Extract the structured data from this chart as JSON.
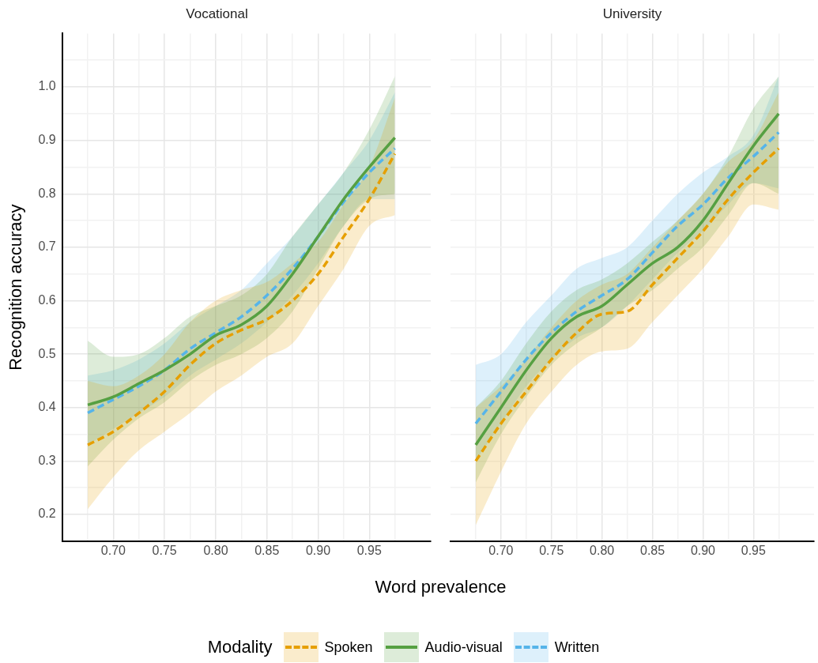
{
  "chart_data": [
    {
      "type": "line",
      "title": "Vocational",
      "xlabel": "Word prevalence",
      "ylabel": "Recognition accuracy",
      "legend_title": "Modality",
      "legend": "bottom",
      "grid": true,
      "marker": "none",
      "x": [
        0.675,
        0.7,
        0.725,
        0.75,
        0.775,
        0.8,
        0.825,
        0.85,
        0.875,
        0.9,
        0.925,
        0.95,
        0.975
      ],
      "xlim": [
        0.65,
        1.01
      ],
      "xticks": [
        {
          "value": 0.675,
          "label": null
        },
        {
          "value": 0.7,
          "label": "0.70"
        },
        {
          "value": 0.725,
          "label": null
        },
        {
          "value": 0.75,
          "label": "0.75"
        },
        {
          "value": 0.775,
          "label": null
        },
        {
          "value": 0.8,
          "label": "0.80"
        },
        {
          "value": 0.825,
          "label": null
        },
        {
          "value": 0.85,
          "label": "0.85"
        },
        {
          "value": 0.875,
          "label": null
        },
        {
          "value": 0.9,
          "label": "0.90"
        },
        {
          "value": 0.925,
          "label": null
        },
        {
          "value": 0.95,
          "label": "0.95"
        },
        {
          "value": 0.975,
          "label": null
        }
      ],
      "ylim": [
        0.15,
        1.1
      ],
      "yticks": [
        {
          "value": 0.15,
          "label": null
        },
        {
          "value": 0.2,
          "label": "0.2"
        },
        {
          "value": 0.25,
          "label": null
        },
        {
          "value": 0.3,
          "label": "0.3"
        },
        {
          "value": 0.35,
          "label": null
        },
        {
          "value": 0.4,
          "label": "0.4"
        },
        {
          "value": 0.45,
          "label": null
        },
        {
          "value": 0.5,
          "label": "0.5"
        },
        {
          "value": 0.55,
          "label": null
        },
        {
          "value": 0.6,
          "label": "0.6"
        },
        {
          "value": 0.65,
          "label": null
        },
        {
          "value": 0.7,
          "label": "0.7"
        },
        {
          "value": 0.75,
          "label": null
        },
        {
          "value": 0.8,
          "label": "0.8"
        },
        {
          "value": 0.85,
          "label": null
        },
        {
          "value": 0.9,
          "label": "0.9"
        },
        {
          "value": 0.95,
          "label": null
        },
        {
          "value": 1.0,
          "label": "1.0"
        },
        {
          "value": 1.05,
          "label": null
        }
      ],
      "series": [
        {
          "name": "Spoken",
          "color": "#e69f00",
          "line_style": "dashed",
          "values": [
            0.33,
            0.355,
            0.39,
            0.43,
            0.48,
            0.52,
            0.545,
            0.565,
            0.6,
            0.65,
            0.72,
            0.79,
            0.875
          ],
          "lower": [
            0.21,
            0.27,
            0.32,
            0.355,
            0.39,
            0.43,
            0.46,
            0.495,
            0.52,
            0.59,
            0.66,
            0.74,
            0.76
          ],
          "upper": [
            0.45,
            0.44,
            0.46,
            0.5,
            0.56,
            0.6,
            0.62,
            0.635,
            0.67,
            0.71,
            0.78,
            0.85,
            0.98
          ]
        },
        {
          "name": "Audio-visual",
          "color": "#56a042",
          "line_style": "solid",
          "values": [
            0.405,
            0.42,
            0.445,
            0.47,
            0.5,
            0.535,
            0.555,
            0.59,
            0.65,
            0.72,
            0.79,
            0.85,
            0.905
          ],
          "lower": [
            0.29,
            0.34,
            0.38,
            0.41,
            0.45,
            0.48,
            0.5,
            0.53,
            0.58,
            0.66,
            0.74,
            0.79,
            0.8
          ],
          "upper": [
            0.525,
            0.495,
            0.5,
            0.53,
            0.57,
            0.59,
            0.61,
            0.65,
            0.72,
            0.78,
            0.84,
            0.92,
            1.02
          ]
        },
        {
          "name": "Written",
          "color": "#56b4e9",
          "line_style": "dashed",
          "values": [
            0.39,
            0.415,
            0.44,
            0.47,
            0.51,
            0.54,
            0.57,
            0.61,
            0.66,
            0.72,
            0.785,
            0.84,
            0.885
          ],
          "lower": [
            0.33,
            0.36,
            0.39,
            0.42,
            0.46,
            0.49,
            0.52,
            0.56,
            0.61,
            0.67,
            0.74,
            0.79,
            0.79
          ],
          "upper": [
            0.46,
            0.47,
            0.49,
            0.52,
            0.56,
            0.59,
            0.62,
            0.67,
            0.72,
            0.78,
            0.84,
            0.9,
            0.99
          ]
        }
      ]
    },
    {
      "type": "line",
      "title": "University",
      "grid": true,
      "marker": "none",
      "tick_labels": "x",
      "x": [
        0.675,
        0.7,
        0.725,
        0.75,
        0.775,
        0.8,
        0.825,
        0.85,
        0.875,
        0.9,
        0.925,
        0.95,
        0.975
      ],
      "xlim": [
        0.65,
        1.01
      ],
      "xticks": [
        {
          "value": 0.675,
          "label": null
        },
        {
          "value": 0.7,
          "label": "0.70"
        },
        {
          "value": 0.725,
          "label": null
        },
        {
          "value": 0.75,
          "label": "0.75"
        },
        {
          "value": 0.775,
          "label": null
        },
        {
          "value": 0.8,
          "label": "0.80"
        },
        {
          "value": 0.825,
          "label": null
        },
        {
          "value": 0.85,
          "label": "0.85"
        },
        {
          "value": 0.875,
          "label": null
        },
        {
          "value": 0.9,
          "label": "0.90"
        },
        {
          "value": 0.925,
          "label": null
        },
        {
          "value": 0.95,
          "label": "0.95"
        },
        {
          "value": 0.975,
          "label": null
        }
      ],
      "ylim": [
        0.15,
        1.1
      ],
      "yticks": [
        {
          "value": 0.15,
          "label": null
        },
        {
          "value": 0.2,
          "label": null
        },
        {
          "value": 0.25,
          "label": null
        },
        {
          "value": 0.3,
          "label": null
        },
        {
          "value": 0.35,
          "label": null
        },
        {
          "value": 0.4,
          "label": null
        },
        {
          "value": 0.45,
          "label": null
        },
        {
          "value": 0.5,
          "label": null
        },
        {
          "value": 0.55,
          "label": null
        },
        {
          "value": 0.6,
          "label": null
        },
        {
          "value": 0.65,
          "label": null
        },
        {
          "value": 0.7,
          "label": null
        },
        {
          "value": 0.75,
          "label": null
        },
        {
          "value": 0.8,
          "label": null
        },
        {
          "value": 0.85,
          "label": null
        },
        {
          "value": 0.9,
          "label": null
        },
        {
          "value": 0.95,
          "label": null
        },
        {
          "value": 1.0,
          "label": null
        },
        {
          "value": 1.05,
          "label": null
        }
      ],
      "series": [
        {
          "color": "#e69f00",
          "line_style": "dashed",
          "values": [
            0.3,
            0.37,
            0.43,
            0.49,
            0.54,
            0.575,
            0.58,
            0.63,
            0.68,
            0.73,
            0.79,
            0.84,
            0.885
          ],
          "lower": [
            0.18,
            0.28,
            0.37,
            0.43,
            0.48,
            0.505,
            0.51,
            0.56,
            0.61,
            0.66,
            0.72,
            0.78,
            0.77
          ],
          "upper": [
            0.4,
            0.44,
            0.49,
            0.55,
            0.6,
            0.63,
            0.65,
            0.7,
            0.75,
            0.8,
            0.86,
            0.9,
            0.99
          ]
        },
        {
          "color": "#56a042",
          "line_style": "solid",
          "values": [
            0.33,
            0.4,
            0.47,
            0.53,
            0.57,
            0.59,
            0.63,
            0.67,
            0.7,
            0.75,
            0.82,
            0.89,
            0.95
          ],
          "lower": [
            0.26,
            0.35,
            0.42,
            0.48,
            0.52,
            0.55,
            0.59,
            0.62,
            0.66,
            0.7,
            0.76,
            0.82,
            0.8
          ],
          "upper": [
            0.4,
            0.45,
            0.52,
            0.58,
            0.62,
            0.64,
            0.67,
            0.71,
            0.75,
            0.8,
            0.87,
            0.96,
            1.02
          ]
        },
        {
          "color": "#56b4e9",
          "line_style": "dashed",
          "values": [
            0.37,
            0.43,
            0.49,
            0.54,
            0.58,
            0.61,
            0.64,
            0.69,
            0.74,
            0.78,
            0.83,
            0.87,
            0.915
          ],
          "lower": [
            0.3,
            0.37,
            0.44,
            0.49,
            0.53,
            0.55,
            0.59,
            0.64,
            0.69,
            0.73,
            0.78,
            0.82,
            0.81
          ],
          "upper": [
            0.48,
            0.5,
            0.56,
            0.61,
            0.66,
            0.68,
            0.7,
            0.75,
            0.8,
            0.84,
            0.87,
            0.91,
            1.02
          ]
        }
      ]
    }
  ]
}
